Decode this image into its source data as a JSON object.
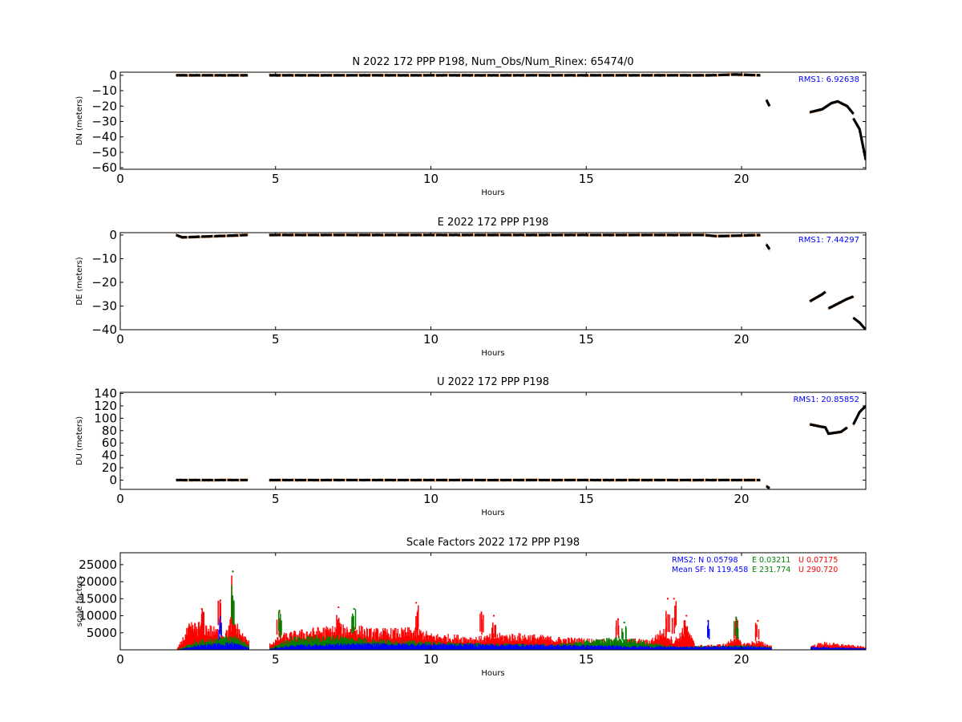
{
  "chart_data": [
    {
      "type": "scatter",
      "title": "N 2022 172 PPP  P198, Num_Obs/Num_Rinex: 65474/0",
      "xlabel": "Hours",
      "ylabel": "DN (meters)",
      "xlim": [
        0,
        24
      ],
      "ylim": [
        -61,
        2
      ],
      "xticks": [
        0,
        5,
        10,
        15,
        20
      ],
      "yticks": [
        0,
        -10,
        -20,
        -30,
        -40,
        -50,
        -60
      ],
      "ytick_labels": [
        "0",
        "−10",
        "−20",
        "−30",
        "−40",
        "−50",
        "−60"
      ],
      "annotation": "RMS1:  6.92638",
      "annotation_color": "#0000ff",
      "segments": [
        [
          [
            1.8,
            0
          ],
          [
            4.1,
            0
          ]
        ],
        [
          [
            4.8,
            0
          ],
          [
            19.0,
            0
          ],
          [
            19.8,
            0.5
          ],
          [
            20.6,
            0
          ]
        ],
        [
          [
            20.8,
            -16
          ],
          [
            20.9,
            -20
          ]
        ],
        [
          [
            22.2,
            -24
          ],
          [
            22.6,
            -22
          ],
          [
            22.9,
            -18
          ],
          [
            23.1,
            -17
          ],
          [
            23.4,
            -20
          ],
          [
            23.6,
            -25
          ]
        ],
        [
          [
            23.6,
            -28
          ],
          [
            23.8,
            -35
          ],
          [
            24.0,
            -55
          ]
        ]
      ]
    },
    {
      "type": "scatter",
      "title": "E 2022 172 PPP  P198",
      "xlabel": "Hours",
      "ylabel": "DE (meters)",
      "xlim": [
        0,
        24
      ],
      "ylim": [
        -40,
        1
      ],
      "xticks": [
        0,
        5,
        10,
        15,
        20
      ],
      "yticks": [
        0,
        -10,
        -20,
        -30,
        -40
      ],
      "ytick_labels": [
        "0",
        "−10",
        "−20",
        "−30",
        "−40"
      ],
      "annotation": "RMS1:  7.44297",
      "annotation_color": "#0000ff",
      "segments": [
        [
          [
            1.8,
            0
          ],
          [
            2.0,
            -1
          ],
          [
            4.1,
            0
          ]
        ],
        [
          [
            4.8,
            0
          ],
          [
            18.8,
            0
          ],
          [
            19.2,
            -0.5
          ],
          [
            20.6,
            0
          ]
        ],
        [
          [
            20.8,
            -4
          ],
          [
            20.9,
            -6
          ]
        ],
        [
          [
            22.2,
            -28
          ],
          [
            22.6,
            -25
          ],
          [
            22.7,
            -24
          ]
        ],
        [
          [
            22.8,
            -31
          ],
          [
            23.1,
            -29
          ],
          [
            23.4,
            -27
          ],
          [
            23.6,
            -26
          ]
        ],
        [
          [
            23.6,
            -35
          ],
          [
            23.8,
            -37
          ],
          [
            24.0,
            -40
          ]
        ]
      ]
    },
    {
      "type": "scatter",
      "title": "U 2022 172 PPP  P198",
      "xlabel": "Hours",
      "ylabel": "DU (meters)",
      "xlim": [
        0,
        24
      ],
      "ylim": [
        -15,
        142
      ],
      "xticks": [
        0,
        5,
        10,
        15,
        20
      ],
      "yticks": [
        0,
        20,
        40,
        60,
        80,
        100,
        120,
        140
      ],
      "ytick_labels": [
        "0",
        "20",
        "40",
        "60",
        "80",
        "100",
        "120",
        "140"
      ],
      "annotation": "RMS1: 20.85852",
      "annotation_color": "#0000ff",
      "segments": [
        [
          [
            1.8,
            0
          ],
          [
            4.1,
            0
          ]
        ],
        [
          [
            4.8,
            0
          ],
          [
            20.6,
            0
          ]
        ],
        [
          [
            20.8,
            -10
          ],
          [
            20.9,
            -13
          ]
        ],
        [
          [
            22.2,
            90
          ],
          [
            22.7,
            85
          ],
          [
            22.8,
            75
          ],
          [
            23.2,
            78
          ],
          [
            23.4,
            85
          ]
        ],
        [
          [
            23.6,
            90
          ],
          [
            23.8,
            110
          ],
          [
            24.0,
            120
          ]
        ]
      ]
    },
    {
      "type": "scatter",
      "title": "Scale Factors 2022 172 PPP  P198",
      "xlabel": "Hours",
      "ylabel": "scale factors",
      "xlim": [
        0,
        24
      ],
      "ylim": [
        0,
        28500
      ],
      "xticks": [
        0,
        5,
        10,
        15,
        20
      ],
      "yticks": [
        5000,
        10000,
        15000,
        20000,
        25000
      ],
      "ytick_labels": [
        "5000",
        "10000",
        "15000",
        "20000",
        "25000"
      ],
      "legend_rows": [
        {
          "label": "RMS2:",
          "N": "N  0.05798",
          "E": "E  0.03211",
          "U": "U  0.07175"
        },
        {
          "label": "Mean SF:",
          "N": "N 119.458",
          "E": "E 231.774",
          "U": "U  290.720"
        }
      ],
      "colors": {
        "N": "#0000ff",
        "E": "#008000",
        "U": "#ff0000"
      },
      "series": [
        {
          "name": "U",
          "color": "#ff0000",
          "envelope": [
            [
              1.8,
              0
            ],
            [
              2.2,
              8000
            ],
            [
              2.6,
              9000
            ],
            [
              3.0,
              7000
            ],
            [
              3.4,
              6000
            ],
            [
              3.6,
              12000
            ],
            [
              3.8,
              7000
            ],
            [
              4.1,
              3000
            ],
            [
              4.8,
              2000
            ],
            [
              5.2,
              5000
            ],
            [
              6.0,
              6500
            ],
            [
              7.0,
              7500
            ],
            [
              7.5,
              8000
            ],
            [
              8.0,
              6500
            ],
            [
              9.0,
              6500
            ],
            [
              9.5,
              7000
            ],
            [
              10.0,
              5000
            ],
            [
              11.0,
              4500
            ],
            [
              11.5,
              4000
            ],
            [
              12.0,
              5000
            ],
            [
              13.0,
              5000
            ],
            [
              14.0,
              4000
            ],
            [
              15.0,
              3500
            ],
            [
              16.0,
              3000
            ],
            [
              16.5,
              3500
            ],
            [
              17.0,
              3000
            ],
            [
              17.5,
              7000
            ],
            [
              17.8,
              3000
            ],
            [
              18.2,
              8000
            ],
            [
              18.5,
              1500
            ],
            [
              19.0,
              1500
            ],
            [
              19.5,
              2000
            ],
            [
              19.8,
              5000
            ],
            [
              20.0,
              2000
            ],
            [
              20.5,
              3000
            ],
            [
              20.9,
              1500
            ],
            [
              22.3,
              1500
            ],
            [
              22.6,
              2500
            ],
            [
              23.0,
              2000
            ],
            [
              23.5,
              1500
            ],
            [
              24.0,
              1000
            ]
          ],
          "spikes": [
            [
              3.6,
              23000
            ],
            [
              3.2,
              14500
            ],
            [
              2.6,
              12000
            ],
            [
              5.1,
              11000
            ],
            [
              7.0,
              12500
            ],
            [
              9.5,
              13800
            ],
            [
              17.6,
              15000
            ],
            [
              17.8,
              15000
            ],
            [
              18.2,
              10000
            ],
            [
              11.6,
              11000
            ],
            [
              12.0,
              10000
            ],
            [
              16.0,
              9000
            ],
            [
              19.8,
              9000
            ],
            [
              20.5,
              8500
            ]
          ]
        },
        {
          "name": "E",
          "color": "#008000",
          "envelope": [
            [
              1.8,
              0
            ],
            [
              2.5,
              3000
            ],
            [
              3.0,
              3500
            ],
            [
              3.6,
              5000
            ],
            [
              4.1,
              1500
            ],
            [
              4.8,
              500
            ],
            [
              5.5,
              4000
            ],
            [
              7.0,
              4500
            ],
            [
              8.0,
              3500
            ],
            [
              10.0,
              2500
            ],
            [
              12.0,
              2000
            ],
            [
              14.0,
              1800
            ],
            [
              16.0,
              4000
            ],
            [
              17.0,
              2500
            ],
            [
              18.0,
              1000
            ],
            [
              20.0,
              1500
            ],
            [
              20.8,
              1000
            ],
            [
              24.0,
              300
            ]
          ],
          "spikes": [
            [
              5.1,
              11500
            ],
            [
              7.5,
              12000
            ],
            [
              3.6,
              23000
            ],
            [
              16.2,
              8000
            ],
            [
              19.8,
              9500
            ]
          ]
        },
        {
          "name": "N",
          "color": "#0000ff",
          "envelope": [
            [
              1.8,
              0
            ],
            [
              2.5,
              1500
            ],
            [
              3.6,
              2500
            ],
            [
              4.1,
              800
            ],
            [
              4.8,
              300
            ],
            [
              5.5,
              1500
            ],
            [
              7.0,
              2000
            ],
            [
              9.0,
              2000
            ],
            [
              12.0,
              1800
            ],
            [
              15.0,
              1500
            ],
            [
              18.0,
              1000
            ],
            [
              20.0,
              1200
            ],
            [
              20.8,
              1000
            ],
            [
              22.3,
              1000
            ],
            [
              23.0,
              800
            ],
            [
              24.0,
              500
            ]
          ],
          "spikes": [
            [
              18.9,
              8500
            ],
            [
              3.2,
              9500
            ]
          ]
        }
      ]
    }
  ]
}
